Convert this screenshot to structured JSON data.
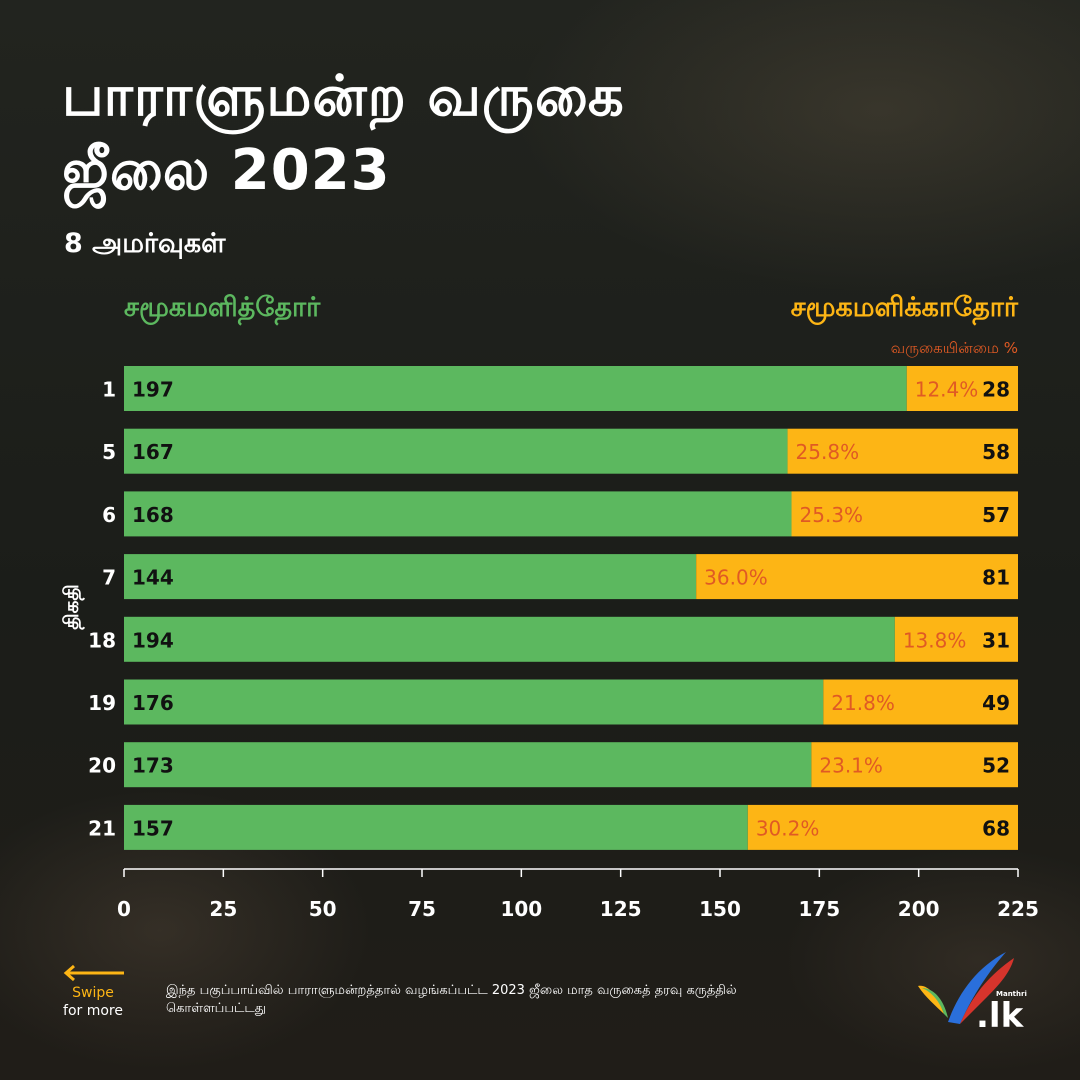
{
  "header": {
    "title_line1": "பாராளுமன்ற வருகை",
    "title_line2": "ஜீலை 2023",
    "subtitle": "8 அமர்வுகள்"
  },
  "legend": {
    "present_label": "சமூகமளித்தோர்",
    "absent_label": "சமூகமளிக்காதோர்",
    "absence_pct_label": "வருகையின்மை %"
  },
  "axis": {
    "y_label": "திகதி"
  },
  "footer": {
    "swipe_label": "Swipe",
    "swipe_sub": "for more",
    "note": "இந்த பகுப்பாய்வில் பாராளுமன்றத்தால் வழங்கப்பட்ட 2023 ஜீலை மாத வருகைத் தரவு கருத்தில் கொள்ளப்பட்டது",
    "logo_text": ".lk",
    "logo_small": "Manthri"
  },
  "colors": {
    "present": "#5cb85f",
    "absent": "#fdb515",
    "pct_text": "#e05a24",
    "value_text": "#111111"
  },
  "chart_data": {
    "type": "bar",
    "orientation": "horizontal",
    "stacked": true,
    "categories": [
      "1",
      "5",
      "6",
      "7",
      "18",
      "19",
      "20",
      "21"
    ],
    "series": [
      {
        "name": "சமூகமளித்தோர்",
        "values": [
          197,
          167,
          168,
          144,
          194,
          176,
          173,
          157
        ]
      },
      {
        "name": "சமூகமளிக்காதோர்",
        "values": [
          28,
          58,
          57,
          81,
          31,
          49,
          52,
          68
        ]
      }
    ],
    "absence_pct_labels": [
      "12.4%",
      "25.8%",
      "25.3%",
      "36.0%",
      "13.8%",
      "21.8%",
      "23.1%",
      "30.2%"
    ],
    "xlim": [
      0,
      225
    ],
    "x_ticks": [
      0,
      25,
      50,
      75,
      100,
      125,
      150,
      175,
      200,
      225
    ],
    "grid": false
  }
}
